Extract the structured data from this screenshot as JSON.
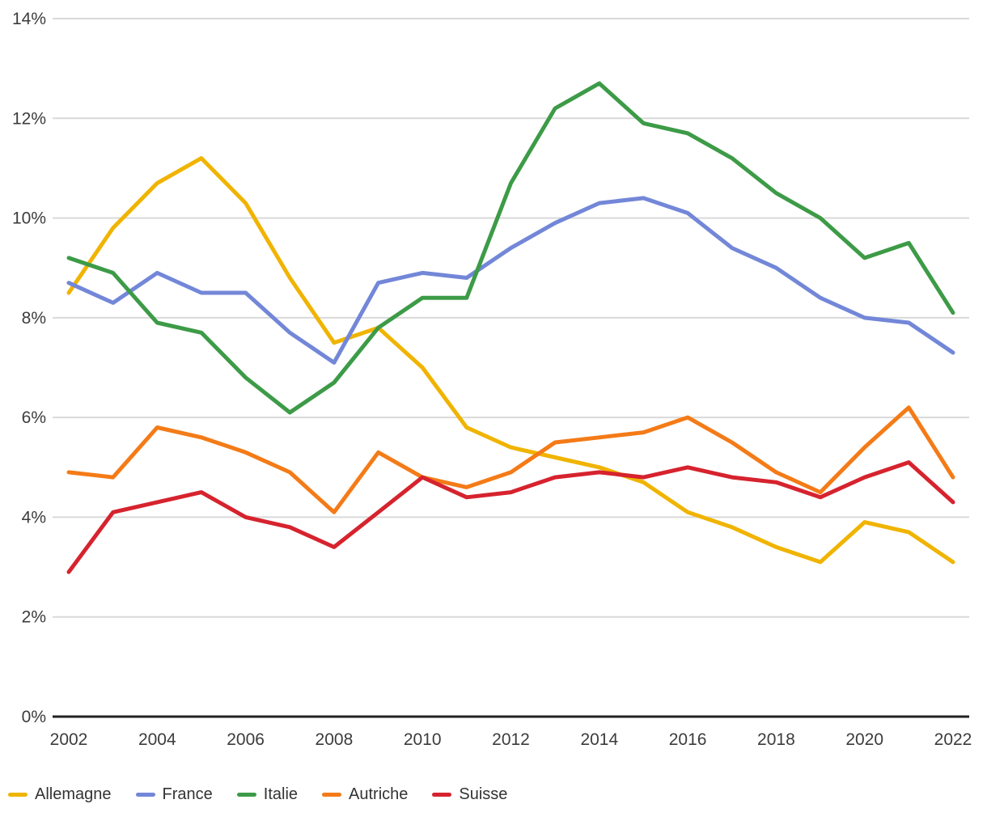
{
  "chart_data": {
    "type": "line",
    "x": [
      2002,
      2003,
      2004,
      2005,
      2006,
      2007,
      2008,
      2009,
      2010,
      2011,
      2012,
      2013,
      2014,
      2015,
      2016,
      2017,
      2018,
      2019,
      2020,
      2021,
      2022
    ],
    "x_tick_labels": [
      "2002",
      "2004",
      "2006",
      "2008",
      "2010",
      "2012",
      "2014",
      "2016",
      "2018",
      "2020",
      "2022"
    ],
    "y_ticks": [
      0,
      2,
      4,
      6,
      8,
      10,
      12,
      14
    ],
    "y_tick_suffix": "%",
    "ylim": [
      0,
      14
    ],
    "grid": true,
    "legend_position": "bottom-left",
    "series": [
      {
        "name": "Allemagne",
        "color": "#F0B400",
        "values": [
          8.5,
          9.8,
          10.7,
          11.2,
          10.3,
          8.8,
          7.5,
          7.8,
          7.0,
          5.8,
          5.4,
          5.2,
          5.0,
          4.7,
          4.1,
          3.8,
          3.4,
          3.1,
          3.9,
          3.7,
          3.1
        ]
      },
      {
        "name": "France",
        "color": "#7387D8",
        "values": [
          8.7,
          8.3,
          8.9,
          8.5,
          8.5,
          7.7,
          7.1,
          8.7,
          8.9,
          8.8,
          9.4,
          9.9,
          10.3,
          10.4,
          10.1,
          9.4,
          9.0,
          8.4,
          8.0,
          7.9,
          7.3
        ]
      },
      {
        "name": "Italie",
        "color": "#3D9B47",
        "values": [
          9.2,
          8.9,
          7.9,
          7.7,
          6.8,
          6.1,
          6.7,
          7.8,
          8.4,
          8.4,
          10.7,
          12.2,
          12.7,
          11.9,
          11.7,
          11.2,
          10.5,
          10.0,
          9.2,
          9.5,
          8.1
        ]
      },
      {
        "name": "Autriche",
        "color": "#F47B17",
        "values": [
          4.9,
          4.8,
          5.8,
          5.6,
          5.3,
          4.9,
          4.1,
          5.3,
          4.8,
          4.6,
          4.9,
          5.5,
          5.6,
          5.7,
          6.0,
          5.5,
          4.9,
          4.5,
          5.4,
          6.2,
          4.8
        ]
      },
      {
        "name": "Suisse",
        "color": "#D6232E",
        "values": [
          2.9,
          4.1,
          4.3,
          4.5,
          4.0,
          3.8,
          3.4,
          4.1,
          4.8,
          4.4,
          4.5,
          4.8,
          4.9,
          4.8,
          5.0,
          4.8,
          4.7,
          4.4,
          4.8,
          5.1,
          4.3
        ]
      }
    ],
    "colors": {
      "gridline": "#D9D9D9",
      "axis_line": "#212121",
      "tick_text": "#3C3C3C"
    }
  }
}
